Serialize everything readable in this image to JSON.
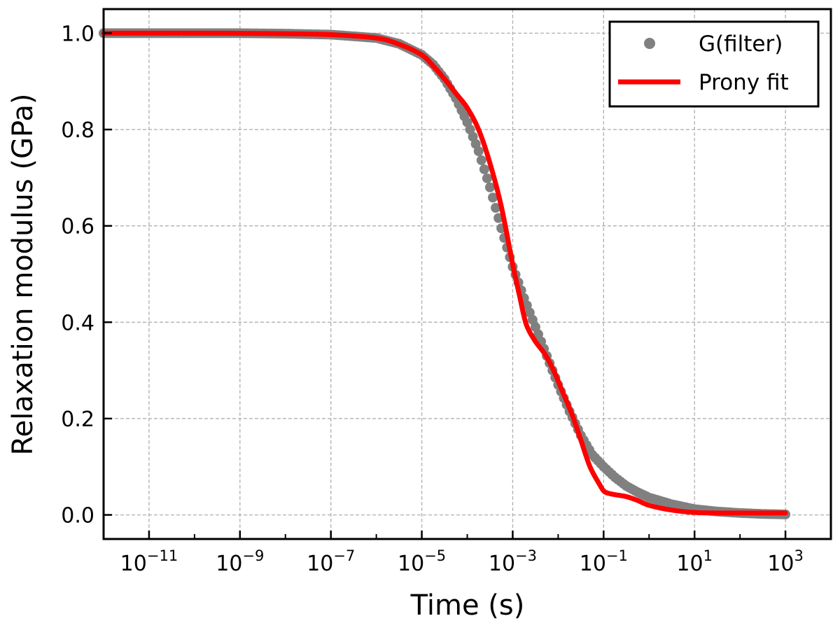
{
  "chart_data": {
    "type": "scatter",
    "title": "",
    "xlabel": "Time (s)",
    "ylabel": "Relaxation modulus (GPa)",
    "xscale": "log",
    "xlim": [
      1e-12,
      10000
    ],
    "ylim": [
      -0.05,
      1.05
    ],
    "grid": true,
    "legend_position": "top-right",
    "x_ticks": [
      {
        "base": "10",
        "exp": "−11",
        "value": 1e-11
      },
      {
        "base": "10",
        "exp": "−9",
        "value": 1e-09
      },
      {
        "base": "10",
        "exp": "−7",
        "value": 1e-07
      },
      {
        "base": "10",
        "exp": "−5",
        "value": 1e-05
      },
      {
        "base": "10",
        "exp": "−3",
        "value": 0.001
      },
      {
        "base": "10",
        "exp": "−1",
        "value": 0.1
      },
      {
        "base": "10",
        "exp": "1",
        "value": 10
      },
      {
        "base": "10",
        "exp": "3",
        "value": 1000
      }
    ],
    "y_ticks": [
      {
        "label": "0.0",
        "value": 0.0
      },
      {
        "label": "0.2",
        "value": 0.2
      },
      {
        "label": "0.4",
        "value": 0.4
      },
      {
        "label": "0.6",
        "value": 0.6
      },
      {
        "label": "0.8",
        "value": 0.8
      },
      {
        "label": "1.0",
        "value": 1.0
      }
    ],
    "series": [
      {
        "name": "G(filter)",
        "kind": "scatter",
        "color": "#808080",
        "x_log10": [
          -12,
          -11,
          -10,
          -9,
          -8,
          -7,
          -6,
          -5.5,
          -5,
          -4.75,
          -4.5,
          -4.25,
          -4,
          -3.75,
          -3.5,
          -3.25,
          -3,
          -2.75,
          -2.5,
          -2.25,
          -2,
          -1.75,
          -1.5,
          -1.25,
          -1,
          -0.75,
          -0.5,
          -0.25,
          0,
          0.5,
          1,
          1.5,
          2,
          2.5,
          3
        ],
        "y": [
          1.0,
          1.0,
          1.0,
          1.0,
          0.999,
          0.997,
          0.99,
          0.978,
          0.955,
          0.935,
          0.905,
          0.865,
          0.815,
          0.755,
          0.68,
          0.595,
          0.515,
          0.45,
          0.39,
          0.33,
          0.27,
          0.215,
          0.165,
          0.125,
          0.1,
          0.078,
          0.06,
          0.047,
          0.036,
          0.022,
          0.012,
          0.007,
          0.004,
          0.002,
          0.001
        ]
      },
      {
        "name": "Prony fit",
        "kind": "line",
        "color": "#ff0000",
        "x_log10": [
          -12,
          -10,
          -8,
          -7,
          -6,
          -5.5,
          -5,
          -4.75,
          -4.5,
          -4.25,
          -4,
          -3.75,
          -3.5,
          -3.25,
          -3,
          -2.85,
          -2.7,
          -2.5,
          -2.3,
          -2.1,
          -1.9,
          -1.7,
          -1.5,
          -1.3,
          -1.1,
          -1,
          -0.9,
          -0.75,
          -0.5,
          -0.25,
          0,
          0.5,
          1,
          1.5,
          2,
          2.5,
          3
        ],
        "y": [
          1.0,
          1.0,
          0.999,
          0.997,
          0.99,
          0.977,
          0.955,
          0.932,
          0.905,
          0.875,
          0.845,
          0.8,
          0.73,
          0.64,
          0.52,
          0.455,
          0.395,
          0.36,
          0.335,
          0.3,
          0.255,
          0.21,
          0.155,
          0.1,
          0.065,
          0.05,
          0.045,
          0.042,
          0.038,
          0.03,
          0.02,
          0.01,
          0.005,
          0.004,
          0.004,
          0.004,
          0.004
        ]
      }
    ]
  }
}
